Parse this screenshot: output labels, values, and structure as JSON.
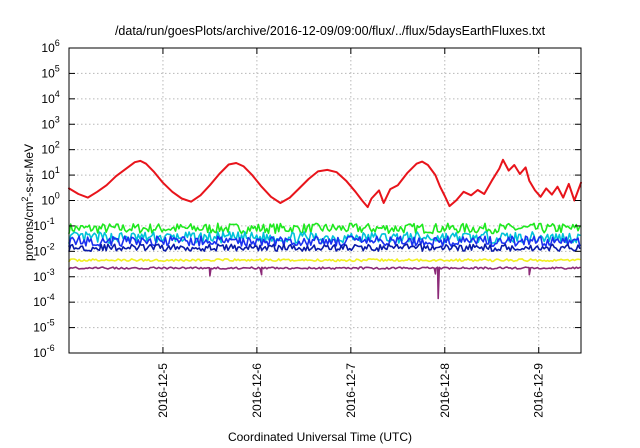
{
  "chart_data": {
    "type": "line",
    "title": "/data/run/goesPlots/archive/2016-12-09/09:00/flux/../flux/5daysEarthFluxes.txt",
    "xlabel": "Coordinated Universal Time (UTC)",
    "ylabel": "protons/cm2-s-sr-MeV",
    "ylabel_parts": {
      "before": "protons/cm",
      "sup": "2",
      "after": "-s-sr-MeV"
    },
    "yscale": "log",
    "xlim": [
      0.0,
      5.45
    ],
    "ylim_exp": [
      -6,
      6
    ],
    "ytick_exponents": [
      -6,
      -5,
      -4,
      -3,
      -2,
      -1,
      0,
      1,
      2,
      3,
      4,
      5,
      6
    ],
    "ytick_base": "10",
    "xticks": [
      {
        "x": 1.0,
        "label": "2016-12-5"
      },
      {
        "x": 2.0,
        "label": "2016-12-6"
      },
      {
        "x": 3.0,
        "label": "2016-12-7"
      },
      {
        "x": 4.0,
        "label": "2016-12-8"
      },
      {
        "x": 5.0,
        "label": "2016-12-9"
      }
    ],
    "grid": true,
    "colors": {
      "red": "#e8141b",
      "green": "#1ee81e",
      "cyan": "#00c2d8",
      "blue": "#1a30f0",
      "navy": "#0a1aa8",
      "yellow": "#f0f020",
      "purple": "#8c2a78"
    },
    "series": [
      {
        "color": "red",
        "points": [
          [
            0,
            3
          ],
          [
            0.1,
            1.8
          ],
          [
            0.2,
            1.3
          ],
          [
            0.3,
            2.2
          ],
          [
            0.4,
            4
          ],
          [
            0.5,
            9
          ],
          [
            0.6,
            17
          ],
          [
            0.7,
            32
          ],
          [
            0.76,
            36
          ],
          [
            0.82,
            28
          ],
          [
            0.9,
            14
          ],
          [
            1.0,
            5
          ],
          [
            1.1,
            2.2
          ],
          [
            1.2,
            1.2
          ],
          [
            1.3,
            0.9
          ],
          [
            1.4,
            1.6
          ],
          [
            1.5,
            4
          ],
          [
            1.6,
            11
          ],
          [
            1.7,
            26
          ],
          [
            1.78,
            30
          ],
          [
            1.86,
            22
          ],
          [
            1.95,
            10
          ],
          [
            2.05,
            3.5
          ],
          [
            2.15,
            1.4
          ],
          [
            2.25,
            0.8
          ],
          [
            2.35,
            1.3
          ],
          [
            2.45,
            3
          ],
          [
            2.55,
            7
          ],
          [
            2.65,
            14
          ],
          [
            2.75,
            16
          ],
          [
            2.85,
            13
          ],
          [
            2.95,
            6
          ],
          [
            3.05,
            2.2
          ],
          [
            3.12,
            1.0
          ],
          [
            3.18,
            0.55
          ],
          [
            3.22,
            1.2
          ],
          [
            3.3,
            2.5
          ],
          [
            3.35,
            0.8
          ],
          [
            3.42,
            2.8
          ],
          [
            3.5,
            4
          ],
          [
            3.6,
            12
          ],
          [
            3.7,
            28
          ],
          [
            3.76,
            34
          ],
          [
            3.82,
            25
          ],
          [
            3.9,
            10
          ],
          [
            3.95,
            3.5
          ],
          [
            4.0,
            1.5
          ],
          [
            4.05,
            0.6
          ],
          [
            4.12,
            1.0
          ],
          [
            4.2,
            2.2
          ],
          [
            4.28,
            1.6
          ],
          [
            4.35,
            2.6
          ],
          [
            4.42,
            1.8
          ],
          [
            4.5,
            6
          ],
          [
            4.58,
            18
          ],
          [
            4.62,
            40
          ],
          [
            4.68,
            15
          ],
          [
            4.74,
            25
          ],
          [
            4.8,
            11
          ],
          [
            4.86,
            20
          ],
          [
            4.9,
            6
          ],
          [
            4.96,
            2.5
          ],
          [
            5.02,
            1.4
          ],
          [
            5.08,
            3
          ],
          [
            5.14,
            1.7
          ],
          [
            5.2,
            3.5
          ],
          [
            5.26,
            1.3
          ],
          [
            5.32,
            4.5
          ],
          [
            5.38,
            1.0
          ],
          [
            5.45,
            5
          ]
        ]
      },
      {
        "color": "green",
        "noise": {
          "base": 0.08,
          "amp": 0.2,
          "seed": 7
        }
      },
      {
        "color": "cyan",
        "noise": {
          "base": 0.035,
          "amp": 0.22,
          "seed": 13
        }
      },
      {
        "color": "blue",
        "noise": {
          "base": 0.025,
          "amp": 0.2,
          "seed": 21
        }
      },
      {
        "color": "navy",
        "noise": {
          "base": 0.014,
          "amp": 0.14,
          "seed": 29
        }
      },
      {
        "color": "yellow",
        "noise": {
          "base": 0.0045,
          "amp": 0.05,
          "seed": 37
        }
      },
      {
        "color": "purple",
        "noise": {
          "base": 0.0022,
          "amp": 0.04,
          "seed": 43
        },
        "dips": [
          [
            1.5,
            0.0011
          ],
          [
            2.05,
            0.0012
          ],
          [
            3.9,
            0.0013
          ],
          [
            3.93,
            0.00014
          ],
          [
            4.9,
            0.0012
          ]
        ]
      }
    ]
  }
}
